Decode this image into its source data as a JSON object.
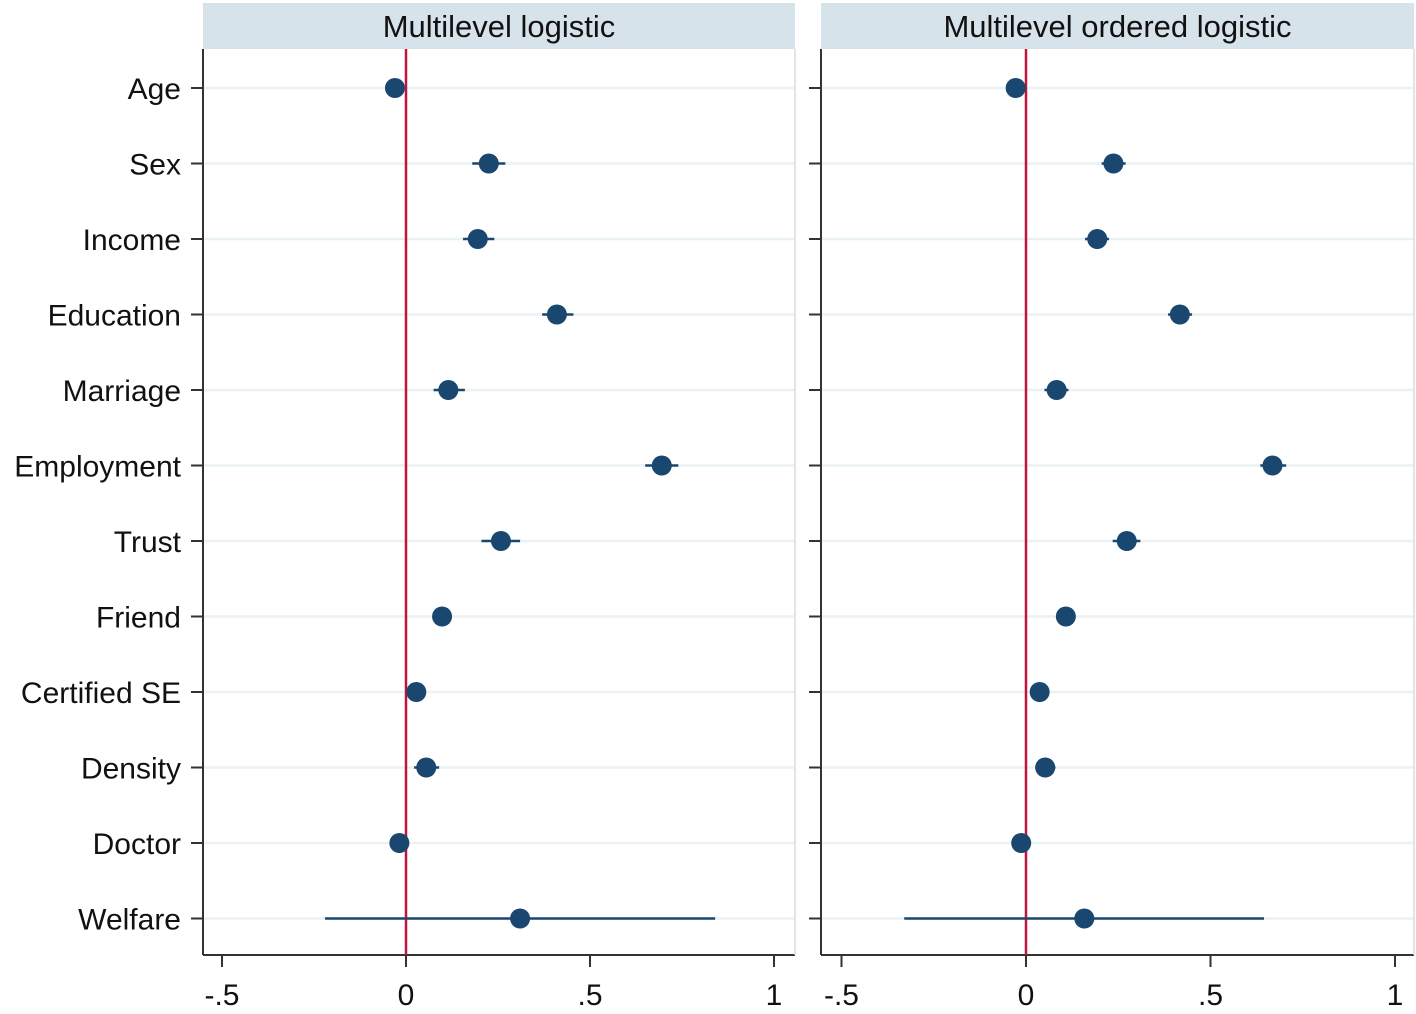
{
  "chart_data": {
    "type": "scatter",
    "subtype": "coefficient-plot",
    "categories": [
      "Age",
      "Sex",
      "Income",
      "Education",
      "Marriage",
      "Employment",
      "Trust",
      "Friend",
      "Certified SE",
      "Density",
      "Doctor",
      "Welfare"
    ],
    "x_ticks": [
      -0.5,
      0,
      0.5,
      1
    ],
    "x_tick_labels": [
      "-.5",
      "0",
      ".5",
      "1"
    ],
    "xlim": [
      -0.55,
      1.05
    ],
    "reference_line": 0,
    "grid": true,
    "colors": {
      "marker": "#1a476f",
      "reference_line": "#c0143c",
      "strip_background": "#d6e3ea",
      "grid": "#eaf2f3",
      "axis": "#000000"
    },
    "panels": [
      {
        "title": "Multilevel logistic",
        "series": [
          {
            "category": "Age",
            "estimate": -0.03,
            "ci": [
              -0.04,
              -0.02
            ]
          },
          {
            "category": "Sex",
            "estimate": 0.225,
            "ci": [
              0.18,
              0.27
            ]
          },
          {
            "category": "Income",
            "estimate": 0.195,
            "ci": [
              0.155,
              0.24
            ]
          },
          {
            "category": "Education",
            "estimate": 0.41,
            "ci": [
              0.37,
              0.455
            ]
          },
          {
            "category": "Marriage",
            "estimate": 0.115,
            "ci": [
              0.075,
              0.16
            ]
          },
          {
            "category": "Employment",
            "estimate": 0.695,
            "ci": [
              0.65,
              0.74
            ]
          },
          {
            "category": "Trust",
            "estimate": 0.258,
            "ci": [
              0.205,
              0.31
            ]
          },
          {
            "category": "Friend",
            "estimate": 0.098,
            "ci": [
              0.085,
              0.11
            ]
          },
          {
            "category": "Certified SE",
            "estimate": 0.028,
            "ci": [
              0.015,
              0.04
            ]
          },
          {
            "category": "Density",
            "estimate": 0.055,
            "ci": [
              0.022,
              0.09
            ]
          },
          {
            "category": "Doctor",
            "estimate": -0.018,
            "ci": [
              -0.03,
              -0.005
            ]
          },
          {
            "category": "Welfare",
            "estimate": 0.31,
            "ci": [
              -0.22,
              0.84
            ]
          }
        ]
      },
      {
        "title": "Multilevel ordered logistic",
        "series": [
          {
            "category": "Age",
            "estimate": -0.028,
            "ci": [
              -0.04,
              -0.015
            ]
          },
          {
            "category": "Sex",
            "estimate": 0.237,
            "ci": [
              0.205,
              0.27
            ]
          },
          {
            "category": "Income",
            "estimate": 0.193,
            "ci": [
              0.16,
              0.225
            ]
          },
          {
            "category": "Education",
            "estimate": 0.417,
            "ci": [
              0.385,
              0.45
            ]
          },
          {
            "category": "Marriage",
            "estimate": 0.083,
            "ci": [
              0.05,
              0.115
            ]
          },
          {
            "category": "Employment",
            "estimate": 0.668,
            "ci": [
              0.635,
              0.705
            ]
          },
          {
            "category": "Trust",
            "estimate": 0.273,
            "ci": [
              0.235,
              0.31
            ]
          },
          {
            "category": "Friend",
            "estimate": 0.108,
            "ci": [
              0.095,
              0.12
            ]
          },
          {
            "category": "Certified SE",
            "estimate": 0.037,
            "ci": [
              0.025,
              0.05
            ]
          },
          {
            "category": "Density",
            "estimate": 0.052,
            "ci": [
              0.025,
              0.08
            ]
          },
          {
            "category": "Doctor",
            "estimate": -0.013,
            "ci": [
              -0.025,
              0.0
            ]
          },
          {
            "category": "Welfare",
            "estimate": 0.158,
            "ci": [
              -0.33,
              0.645
            ]
          }
        ]
      }
    ]
  }
}
